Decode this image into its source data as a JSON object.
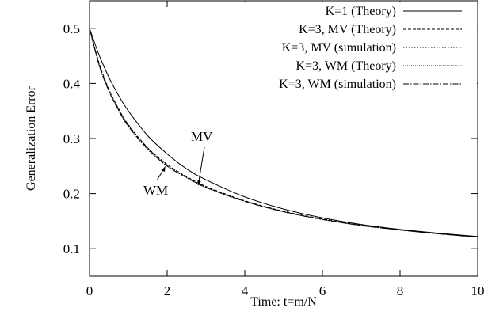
{
  "chart_data": {
    "type": "line",
    "title": "",
    "xlabel": "Time: t=m/N",
    "ylabel": "Generalization Error",
    "xlim": [
      0,
      10
    ],
    "ylim": [
      0.05,
      0.55
    ],
    "x_ticks": [
      "0",
      "2",
      "4",
      "6",
      "8",
      "10"
    ],
    "y_ticks": [
      "0.1",
      "0.2",
      "0.3",
      "0.4",
      "0.5"
    ],
    "grid": false,
    "legend_position": "top-right",
    "x": [
      0,
      0.25,
      0.5,
      0.75,
      1.0,
      1.5,
      2.0,
      2.5,
      3.0,
      4.0,
      5.0,
      6.0,
      7.0,
      8.0,
      9.0,
      10.0
    ],
    "series": [
      {
        "name": "K=1 (Theory)",
        "style": "solid",
        "values": [
          0.5,
          0.451,
          0.411,
          0.378,
          0.35,
          0.305,
          0.272,
          0.245,
          0.225,
          0.194,
          0.172,
          0.156,
          0.144,
          0.135,
          0.128,
          0.122
        ]
      },
      {
        "name": "K=3, MV (Theory)",
        "style": "dashed",
        "values": [
          0.5,
          0.436,
          0.389,
          0.354,
          0.325,
          0.283,
          0.253,
          0.231,
          0.213,
          0.187,
          0.168,
          0.154,
          0.143,
          0.134,
          0.127,
          0.121
        ]
      },
      {
        "name": "K=3, MV (simulation)",
        "style": "dotted",
        "values": [
          0.5,
          0.435,
          0.388,
          0.353,
          0.324,
          0.283,
          0.252,
          0.23,
          0.212,
          0.186,
          0.167,
          0.153,
          0.142,
          0.134,
          0.127,
          0.121
        ]
      },
      {
        "name": "K=3, WM (Theory)",
        "style": "fine-dotted",
        "values": [
          0.5,
          0.432,
          0.386,
          0.351,
          0.322,
          0.28,
          0.25,
          0.229,
          0.211,
          0.186,
          0.167,
          0.153,
          0.142,
          0.134,
          0.127,
          0.121
        ]
      },
      {
        "name": "K=3, WM (simulation)",
        "style": "dash-dot",
        "values": [
          0.5,
          0.433,
          0.386,
          0.351,
          0.322,
          0.281,
          0.25,
          0.229,
          0.211,
          0.186,
          0.167,
          0.153,
          0.142,
          0.134,
          0.127,
          0.121
        ]
      }
    ],
    "annotations": [
      {
        "text": "MV",
        "target": [
          2.8,
          0.215
        ]
      },
      {
        "text": "WM",
        "target": [
          1.95,
          0.249
        ]
      }
    ]
  }
}
